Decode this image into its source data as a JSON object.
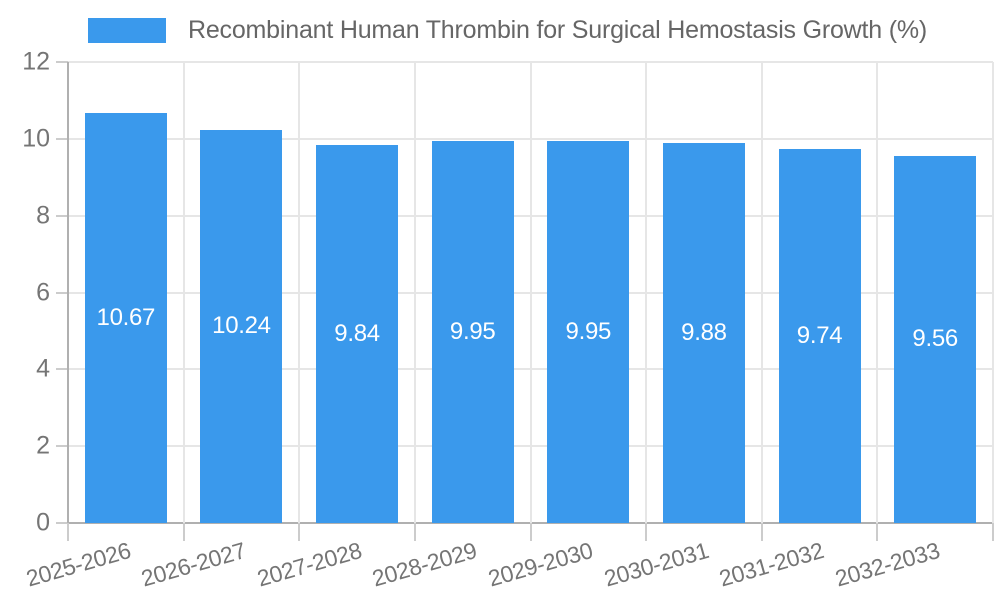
{
  "chart_data": {
    "type": "bar",
    "title": "Recombinant Human Thrombin for Surgical Hemostasis Growth (%)",
    "legend_label": "Recombinant Human Thrombin for Surgical Hemostasis Growth (%)",
    "legend_position": "top",
    "categories": [
      "2025-2026",
      "2026-2027",
      "2027-2028",
      "2028-2029",
      "2029-2030",
      "2030-2031",
      "2031-2032",
      "2032-2033"
    ],
    "values": [
      10.67,
      10.24,
      9.84,
      9.95,
      9.95,
      9.88,
      9.74,
      9.56
    ],
    "value_labels": [
      "10.67",
      "10.24",
      "9.84",
      "9.95",
      "9.95",
      "9.88",
      "9.74",
      "9.56"
    ],
    "xlabel": "",
    "ylabel": "",
    "ylim": [
      0,
      12
    ],
    "yticks": [
      0,
      2,
      4,
      6,
      8,
      10,
      12
    ],
    "grid": true,
    "colors": {
      "bar": "#3A99EC",
      "value_label": "#FFFFFF",
      "axis_text": "#757575",
      "legend_text": "#666666",
      "gridline": "#E6E6E6",
      "axis_line": "#B0B0B0",
      "tick_mark": "#CCCCCC",
      "background": "#FFFFFF"
    }
  }
}
